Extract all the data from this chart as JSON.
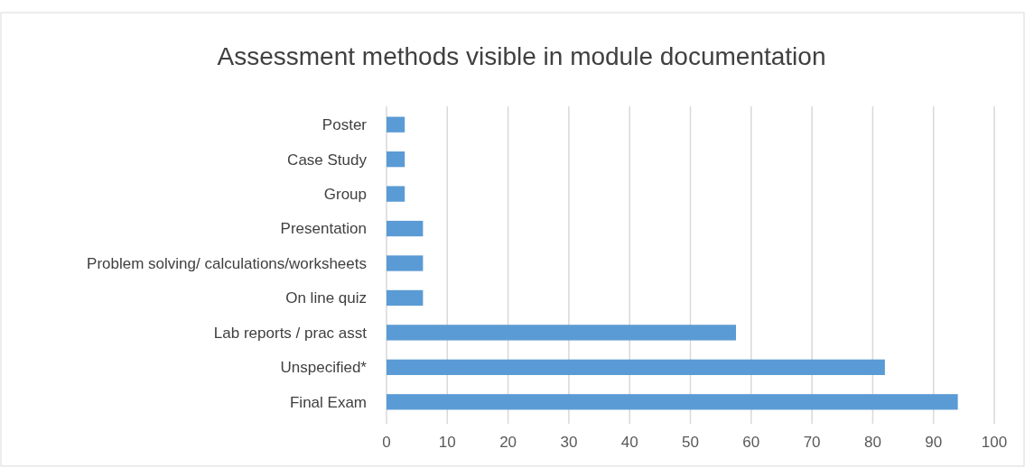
{
  "chart_data": {
    "type": "bar",
    "orientation": "horizontal",
    "title": "Assessment methods visible in module documentation",
    "categories": [
      "Poster",
      "Case Study",
      "Group",
      "Presentation",
      "Problem solving/ calculations/worksheets",
      "On line quiz",
      "Lab reports / prac asst",
      "Unspecified*",
      "Final Exam"
    ],
    "values": [
      3,
      3,
      3,
      6,
      6,
      6,
      57.5,
      82,
      94
    ],
    "color": "#5b9bd5",
    "xlim": [
      0,
      100
    ],
    "xticks": [
      0,
      10,
      20,
      30,
      40,
      50,
      60,
      70,
      80,
      90,
      100
    ],
    "grid": "x"
  }
}
